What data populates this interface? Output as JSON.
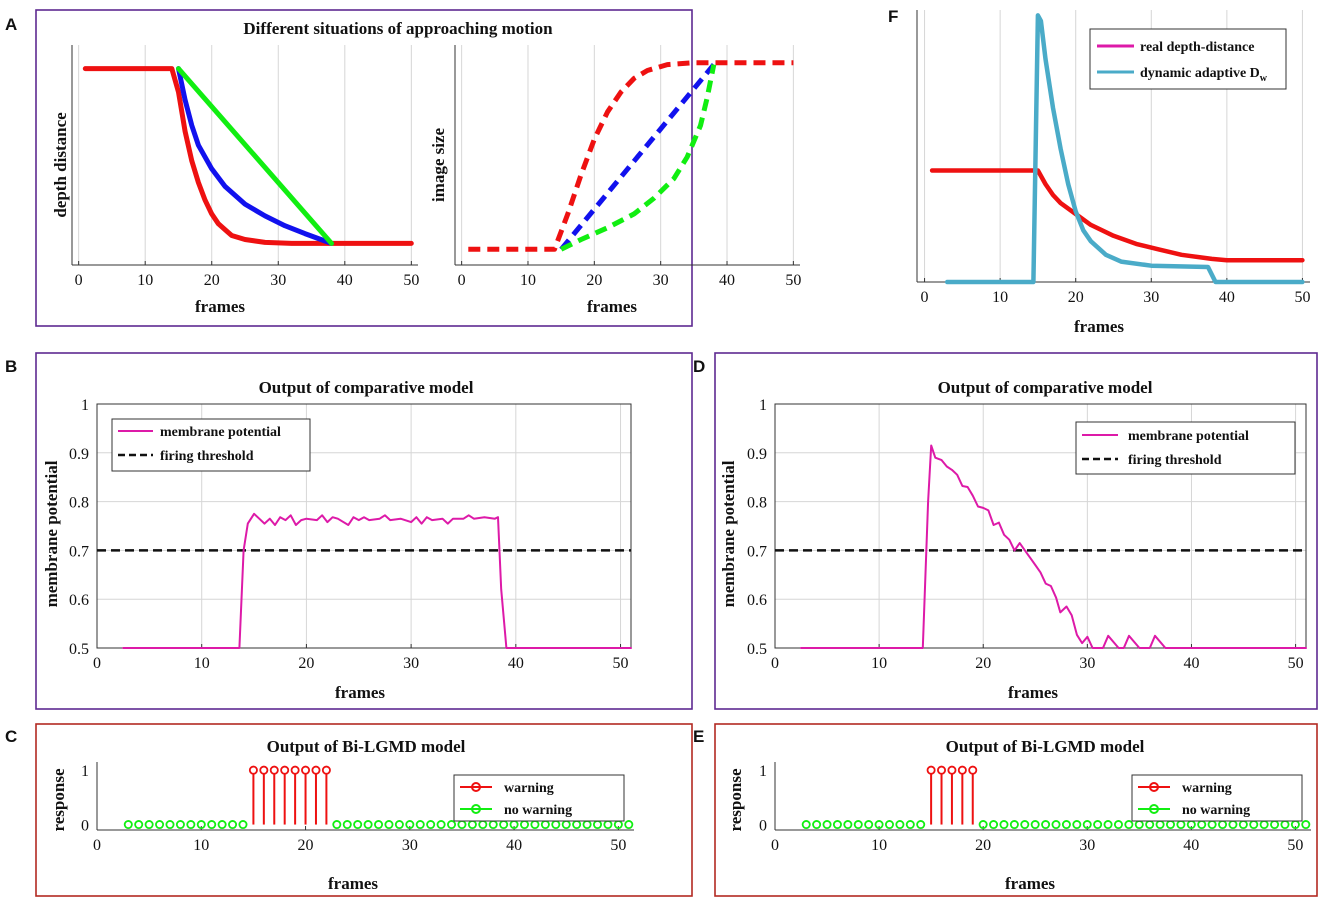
{
  "panel_labels": {
    "A": "A",
    "B": "B",
    "C": "C",
    "D": "D",
    "E": "E",
    "F": "F"
  },
  "colors": {
    "red": "#ee1111",
    "blue": "#1111ee",
    "green": "#11ee11",
    "magenta": "#dd1aa8",
    "cyan": "#4aabc8",
    "purple_frame": "#5e2a91",
    "red_frame": "#b22a22"
  },
  "chart_data": [
    {
      "id": "A1",
      "type": "line",
      "title": "Different situations of approaching motion",
      "xlabel": "frames",
      "ylabel": "depth distance",
      "xlim": [
        -1,
        51
      ],
      "ylim": [
        -0.06,
        1.06
      ],
      "xticks": [
        0,
        10,
        20,
        30,
        40,
        50
      ],
      "yticks": [],
      "grid": true,
      "series": [
        {
          "name": "red",
          "color": "#ee1111",
          "dash": false,
          "points": [
            [
              1,
              0.94
            ],
            [
              14,
              0.94
            ],
            [
              15,
              0.82
            ],
            [
              16,
              0.62
            ],
            [
              17,
              0.47
            ],
            [
              18,
              0.36
            ],
            [
              19,
              0.27
            ],
            [
              20,
              0.2
            ],
            [
              21,
              0.15
            ],
            [
              22,
              0.12
            ],
            [
              23,
              0.09
            ],
            [
              25,
              0.07
            ],
            [
              28,
              0.055
            ],
            [
              32,
              0.05
            ],
            [
              38,
              0.05
            ],
            [
              50,
              0.05
            ]
          ]
        },
        {
          "name": "blue",
          "color": "#1111ee",
          "dash": false,
          "points": [
            [
              15,
              0.94
            ],
            [
              16,
              0.78
            ],
            [
              17,
              0.65
            ],
            [
              18,
              0.55
            ],
            [
              20,
              0.43
            ],
            [
              22,
              0.34
            ],
            [
              25,
              0.25
            ],
            [
              28,
              0.19
            ],
            [
              31,
              0.14
            ],
            [
              34,
              0.1
            ],
            [
              38,
              0.05
            ]
          ]
        },
        {
          "name": "green",
          "color": "#11ee11",
          "dash": false,
          "points": [
            [
              15,
              0.94
            ],
            [
              38,
              0.05
            ]
          ]
        }
      ]
    },
    {
      "id": "A2",
      "type": "line",
      "title": "",
      "xlabel": "frames",
      "ylabel": "image size",
      "xlim": [
        -1,
        51
      ],
      "ylim": [
        -0.06,
        1.06
      ],
      "xticks": [
        0,
        10,
        20,
        30,
        40,
        50
      ],
      "yticks": [],
      "grid": true,
      "series": [
        {
          "name": "red",
          "color": "#ee1111",
          "dash": true,
          "points": [
            [
              1,
              0.02
            ],
            [
              14,
              0.02
            ],
            [
              16,
              0.2
            ],
            [
              18,
              0.4
            ],
            [
              20,
              0.58
            ],
            [
              22,
              0.72
            ],
            [
              24,
              0.82
            ],
            [
              26,
              0.89
            ],
            [
              28,
              0.93
            ],
            [
              31,
              0.96
            ],
            [
              35,
              0.97
            ],
            [
              50,
              0.97
            ]
          ]
        },
        {
          "name": "blue",
          "color": "#1111ee",
          "dash": true,
          "points": [
            [
              15,
              0.02
            ],
            [
              38,
              0.96
            ]
          ]
        },
        {
          "name": "green",
          "color": "#11ee11",
          "dash": true,
          "points": [
            [
              15,
              0.02
            ],
            [
              18,
              0.07
            ],
            [
              22,
              0.13
            ],
            [
              26,
              0.2
            ],
            [
              29,
              0.28
            ],
            [
              32,
              0.38
            ],
            [
              34,
              0.49
            ],
            [
              36,
              0.65
            ],
            [
              37,
              0.79
            ],
            [
              38,
              0.96
            ]
          ]
        }
      ]
    },
    {
      "id": "F",
      "type": "line",
      "title": "",
      "xlabel": "frames",
      "ylabel": "",
      "xlim": [
        -1,
        51
      ],
      "ylim": [
        0,
        1
      ],
      "xticks": [
        0,
        10,
        20,
        30,
        40,
        50
      ],
      "yticks": [],
      "grid": true,
      "legend": [
        "real depth-distance",
        "dynamic adaptive D"
      ],
      "legend_sub": "w",
      "series": [
        {
          "name": "real depth-distance",
          "color": "#ee1111",
          "dash": false,
          "points": [
            [
              1,
              0.41
            ],
            [
              15,
              0.41
            ],
            [
              16,
              0.36
            ],
            [
              17,
              0.32
            ],
            [
              18,
              0.29
            ],
            [
              20,
              0.25
            ],
            [
              22,
              0.21
            ],
            [
              25,
              0.17
            ],
            [
              28,
              0.14
            ],
            [
              31,
              0.12
            ],
            [
              34,
              0.1
            ],
            [
              38,
              0.085
            ],
            [
              40,
              0.08
            ],
            [
              50,
              0.08
            ]
          ]
        },
        {
          "name": "dynamic adaptive Dw",
          "color": "#4aabc8",
          "dash": false,
          "points": [
            [
              3,
              0
            ],
            [
              14.4,
              0
            ],
            [
              15,
              0.98
            ],
            [
              15.4,
              0.96
            ],
            [
              16,
              0.82
            ],
            [
              17,
              0.64
            ],
            [
              18,
              0.49
            ],
            [
              19,
              0.36
            ],
            [
              20,
              0.26
            ],
            [
              21,
              0.19
            ],
            [
              22,
              0.15
            ],
            [
              24,
              0.1
            ],
            [
              26,
              0.075
            ],
            [
              30,
              0.06
            ],
            [
              37.5,
              0.055
            ],
            [
              38.5,
              0
            ],
            [
              50,
              0
            ]
          ]
        }
      ]
    },
    {
      "id": "B",
      "type": "line",
      "title": "Output of comparative model",
      "xlabel": "frames",
      "ylabel": "membrane potential",
      "xlim": [
        0,
        51
      ],
      "ylim": [
        0.5,
        1
      ],
      "xticks": [
        0,
        10,
        20,
        30,
        40,
        50
      ],
      "yticks": [
        0.5,
        0.6,
        0.7,
        0.8,
        0.9,
        1
      ],
      "grid": true,
      "legend": [
        "membrane potential",
        "firing threshold"
      ],
      "threshold": 0.7,
      "series": [
        {
          "name": "membrane potential",
          "color": "#dd1aa8",
          "dash": false,
          "points": [
            [
              2.5,
              0.5
            ],
            [
              13.6,
              0.5
            ],
            [
              14,
              0.7
            ],
            [
              14.4,
              0.755
            ],
            [
              15,
              0.775
            ],
            [
              15.5,
              0.765
            ],
            [
              16,
              0.755
            ],
            [
              16.5,
              0.765
            ],
            [
              17,
              0.752
            ],
            [
              17.5,
              0.768
            ],
            [
              18,
              0.762
            ],
            [
              18.5,
              0.772
            ],
            [
              19,
              0.752
            ],
            [
              19.5,
              0.762
            ],
            [
              20,
              0.765
            ],
            [
              21,
              0.762
            ],
            [
              21.5,
              0.772
            ],
            [
              22,
              0.758
            ],
            [
              22.5,
              0.768
            ],
            [
              23,
              0.765
            ],
            [
              24,
              0.752
            ],
            [
              24.5,
              0.768
            ],
            [
              25,
              0.762
            ],
            [
              25.5,
              0.768
            ],
            [
              26,
              0.762
            ],
            [
              27,
              0.765
            ],
            [
              27.5,
              0.772
            ],
            [
              28,
              0.762
            ],
            [
              29,
              0.765
            ],
            [
              30,
              0.758
            ],
            [
              30.5,
              0.768
            ],
            [
              31,
              0.755
            ],
            [
              31.5,
              0.768
            ],
            [
              32,
              0.762
            ],
            [
              33,
              0.765
            ],
            [
              33.5,
              0.755
            ],
            [
              34,
              0.765
            ],
            [
              35,
              0.765
            ],
            [
              35.5,
              0.772
            ],
            [
              36,
              0.765
            ],
            [
              37,
              0.768
            ],
            [
              38,
              0.765
            ],
            [
              38.3,
              0.768
            ],
            [
              38.6,
              0.62
            ],
            [
              39.1,
              0.5
            ],
            [
              51,
              0.5
            ]
          ]
        }
      ]
    },
    {
      "id": "D",
      "type": "line",
      "title": "Output of comparative model",
      "xlabel": "frames",
      "ylabel": "membrane potential",
      "xlim": [
        0,
        51
      ],
      "ylim": [
        0.5,
        1
      ],
      "xticks": [
        0,
        10,
        20,
        30,
        40,
        50
      ],
      "yticks": [
        0.5,
        0.6,
        0.7,
        0.8,
        0.9,
        1
      ],
      "grid": true,
      "legend": [
        "membrane potential",
        "firing threshold"
      ],
      "threshold": 0.7,
      "series": [
        {
          "name": "membrane potential",
          "color": "#dd1aa8",
          "dash": false,
          "points": [
            [
              2.5,
              0.5
            ],
            [
              14.2,
              0.5
            ],
            [
              14.7,
              0.8
            ],
            [
              15,
              0.915
            ],
            [
              15.4,
              0.89
            ],
            [
              16,
              0.885
            ],
            [
              16.5,
              0.872
            ],
            [
              17,
              0.865
            ],
            [
              17.5,
              0.855
            ],
            [
              18,
              0.832
            ],
            [
              18.5,
              0.83
            ],
            [
              19,
              0.812
            ],
            [
              19.5,
              0.79
            ],
            [
              20,
              0.787
            ],
            [
              20.5,
              0.782
            ],
            [
              21,
              0.752
            ],
            [
              21.5,
              0.757
            ],
            [
              22,
              0.732
            ],
            [
              22.5,
              0.722
            ],
            [
              23,
              0.7
            ],
            [
              23.5,
              0.715
            ],
            [
              24,
              0.7
            ],
            [
              24.5,
              0.685
            ],
            [
              25,
              0.67
            ],
            [
              25.5,
              0.655
            ],
            [
              26,
              0.632
            ],
            [
              26.5,
              0.627
            ],
            [
              27,
              0.603
            ],
            [
              27.4,
              0.573
            ],
            [
              28,
              0.585
            ],
            [
              28.5,
              0.567
            ],
            [
              29,
              0.527
            ],
            [
              29.5,
              0.51
            ],
            [
              30,
              0.523
            ],
            [
              30.5,
              0.5
            ],
            [
              31.5,
              0.5
            ],
            [
              32,
              0.525
            ],
            [
              33,
              0.5
            ],
            [
              33.5,
              0.5
            ],
            [
              34,
              0.525
            ],
            [
              35,
              0.5
            ],
            [
              36,
              0.5
            ],
            [
              36.5,
              0.525
            ],
            [
              37.5,
              0.5
            ],
            [
              51,
              0.5
            ]
          ]
        }
      ]
    },
    {
      "id": "C",
      "type": "stem",
      "title": "Output of Bi-LGMD model",
      "xlabel": "frames",
      "ylabel": "response",
      "xlim": [
        0,
        51.5
      ],
      "ylim": [
        -0.1,
        1.15
      ],
      "xticks": [
        0,
        10,
        20,
        30,
        40,
        50
      ],
      "yticks": [
        0,
        1
      ],
      "grid": false,
      "legend": [
        "warning",
        "no warning"
      ],
      "warning_frames": [
        15,
        16,
        17,
        18,
        19,
        20,
        21,
        22
      ],
      "no_warning_frames": [
        3,
        4,
        5,
        6,
        7,
        8,
        9,
        10,
        11,
        12,
        13,
        14,
        23,
        24,
        25,
        26,
        27,
        28,
        29,
        30,
        31,
        32,
        33,
        34,
        35,
        36,
        37,
        38,
        39,
        40,
        41,
        42,
        43,
        44,
        45,
        46,
        47,
        48,
        49,
        50,
        51
      ]
    },
    {
      "id": "E",
      "type": "stem",
      "title": "Output of Bi-LGMD model",
      "xlabel": "frames",
      "ylabel": "response",
      "xlim": [
        0,
        51.5
      ],
      "ylim": [
        -0.1,
        1.15
      ],
      "xticks": [
        0,
        10,
        20,
        30,
        40,
        50
      ],
      "yticks": [
        0,
        1
      ],
      "grid": false,
      "legend": [
        "warning",
        "no warning"
      ],
      "warning_frames": [
        15,
        16,
        17,
        18,
        19
      ],
      "no_warning_frames": [
        3,
        4,
        5,
        6,
        7,
        8,
        9,
        10,
        11,
        12,
        13,
        14,
        20,
        21,
        22,
        23,
        24,
        25,
        26,
        27,
        28,
        29,
        30,
        31,
        32,
        33,
        34,
        35,
        36,
        37,
        38,
        39,
        40,
        41,
        42,
        43,
        44,
        45,
        46,
        47,
        48,
        49,
        50,
        51
      ]
    }
  ]
}
